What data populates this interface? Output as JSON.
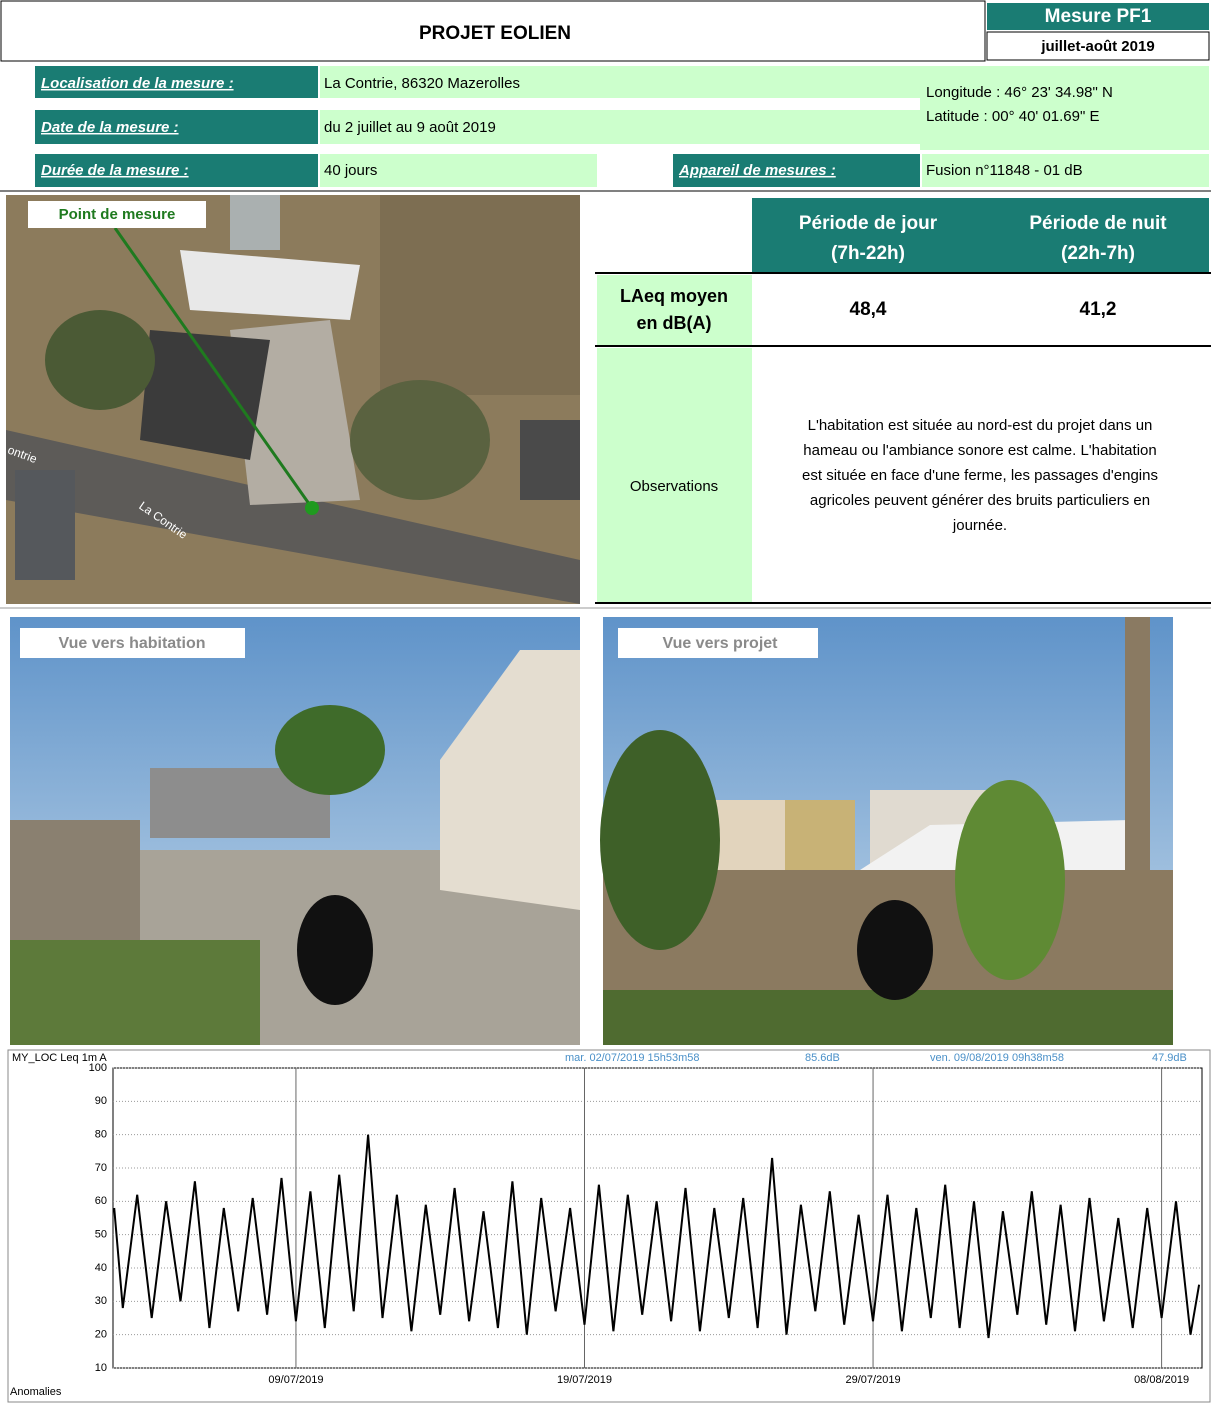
{
  "header": {
    "title": "PROJET EOLIEN",
    "measure": "Mesure PF1",
    "period": "juillet-août 2019"
  },
  "info": {
    "location_label": "Localisation de la mesure :",
    "location": "La Contrie, 86320 Mazerolles",
    "date_label": "Date de la mesure :",
    "date": "du 2 juillet au 9 août 2019",
    "duration_label": "Durée de la mesure :",
    "duration": "40 jours",
    "device_label": "Appareil de mesures :",
    "device": "Fusion n°11848 - 01 dB",
    "longitude": "Longitude : 46° 23' 34.98\" N",
    "latitude": "Latitude : 00° 40' 01.69\" E"
  },
  "map": {
    "point_label": "Point de mesure",
    "street_labels": [
      "ontrie",
      "La Contrie"
    ]
  },
  "table": {
    "columns": [
      [
        "Période de jour",
        "(7h-22h)"
      ],
      [
        "Période de nuit",
        "(22h-7h)"
      ]
    ],
    "row_label": [
      "LAeq moyen",
      "en dB(A)"
    ],
    "values": [
      "48,4",
      "41,2"
    ],
    "observations_label": "Observations",
    "observations": [
      "L'habitation est située au nord-est du projet dans un",
      "hameau ou l'ambiance sonore est calme. L'habitation",
      "est située en face d'une ferme, les passages d'engins",
      "agricoles peuvent générer des bruits particuliers en",
      "journée."
    ]
  },
  "photos": [
    "Vue vers habitation",
    "Vue vers projet"
  ],
  "chart_data": {
    "type": "line",
    "channel": "MY_LOC   Leq 1m  A",
    "cursor_start": "mar. 02/07/2019 15h53m58",
    "cursor_start_value": "85.6dB",
    "cursor_end": "ven. 09/08/2019 09h38m58",
    "cursor_end_value": "47.9dB",
    "footer_label": "Anomalies",
    "color": "#000000",
    "grid": true,
    "x": [
      0.7,
      1,
      1.5,
      2,
      2.5,
      3,
      3.5,
      4,
      4.5,
      5,
      5.5,
      6,
      6.5,
      7,
      7.5,
      8,
      8.5,
      9,
      9.5,
      10,
      10.5,
      11,
      11.5,
      12,
      12.5,
      13,
      13.5,
      14,
      14.5,
      15,
      15.5,
      16,
      16.5,
      17,
      17.5,
      18,
      18.5,
      19,
      19.5,
      20,
      20.5,
      21,
      21.5,
      22,
      22.5,
      23,
      23.5,
      24,
      24.5,
      25,
      25.5,
      26,
      26.5,
      27,
      27.5,
      28,
      28.5,
      29,
      29.5,
      30,
      30.5,
      31,
      31.5,
      32,
      32.5,
      33,
      33.5,
      34,
      34.5,
      35,
      35.5,
      36,
      36.5,
      37,
      37.5,
      38,
      38.3
    ],
    "values": [
      58,
      28,
      62,
      25,
      60,
      30,
      66,
      22,
      58,
      27,
      61,
      26,
      67,
      24,
      63,
      22,
      68,
      27,
      80,
      25,
      62,
      21,
      59,
      26,
      64,
      24,
      57,
      22,
      66,
      20,
      61,
      27,
      58,
      23,
      65,
      21,
      62,
      26,
      60,
      24,
      64,
      21,
      58,
      25,
      61,
      22,
      73,
      20,
      59,
      27,
      63,
      23,
      56,
      24,
      62,
      21,
      58,
      25,
      65,
      22,
      60,
      19,
      57,
      26,
      63,
      23,
      59,
      21,
      61,
      24,
      55,
      22,
      58,
      25,
      60,
      20,
      35
    ],
    "xlim": [
      0.66,
      38.4
    ],
    "xticks": [
      {
        "value": 7,
        "label": "09/07/2019"
      },
      {
        "value": 17,
        "label": "19/07/2019"
      },
      {
        "value": 27,
        "label": "29/07/2019"
      },
      {
        "value": 37,
        "label": "08/08/2019"
      }
    ],
    "ylim": [
      10,
      100
    ],
    "yticks": [
      10,
      20,
      30,
      40,
      50,
      60,
      70,
      80,
      90,
      100
    ]
  }
}
